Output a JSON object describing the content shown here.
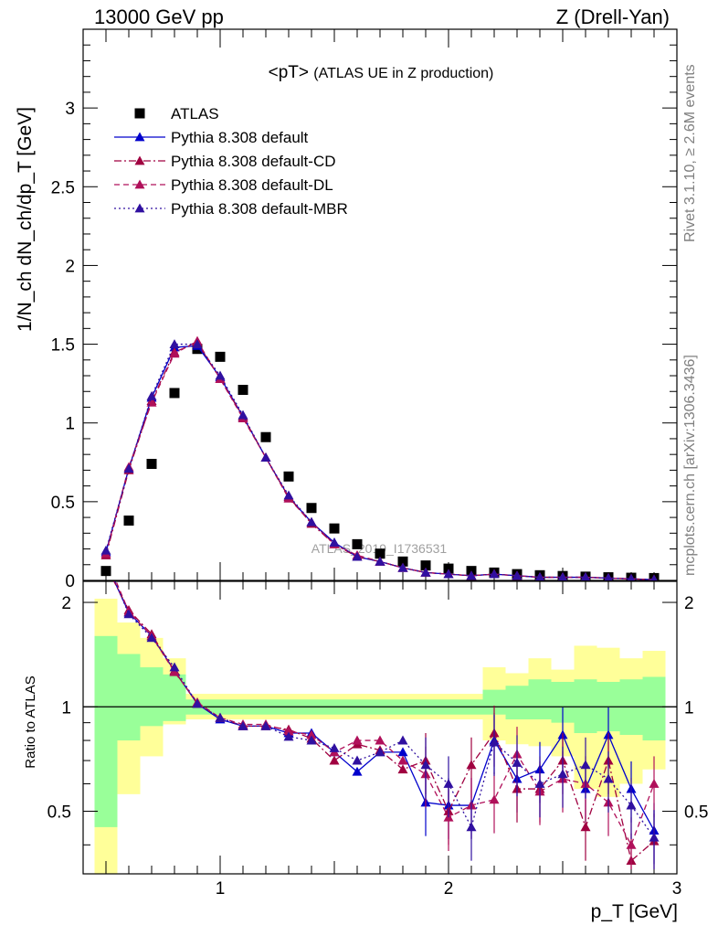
{
  "header": {
    "left": "13000 GeV pp",
    "right": "Z (Drell-Yan)"
  },
  "side_labels": {
    "rivet": "Rivet 3.1.10, ≥ 2.6M events",
    "mcplots": "mcplots.cern.ch [arXiv:1306.3436]"
  },
  "main_panel": {
    "title_main": "<pT>",
    "title_sub": "(ATLAS UE in Z production)",
    "watermark": "ATLAS_2019_I1736531",
    "ylabel": "1/N_ch dN_ch/dp_T [GeV]",
    "y_ticks": [
      "0",
      "0.5",
      "1",
      "1.5",
      "2",
      "2.5",
      "3"
    ]
  },
  "ratio_panel": {
    "ylabel": "Ratio to ATLAS",
    "y_ticks_left": [
      "0.5",
      "1",
      "2"
    ],
    "y_ticks_right": [
      "0.5",
      "1",
      "2"
    ]
  },
  "x_axis": {
    "label": "p_T [GeV]",
    "ticks": [
      "1",
      "2",
      "3"
    ]
  },
  "legend": [
    {
      "label": "ATLAS",
      "color": "#000000",
      "marker": "square",
      "style": "none"
    },
    {
      "label": "Pythia 8.308 default",
      "color": "#0000cc",
      "marker": "triangle",
      "style": "solid"
    },
    {
      "label": "Pythia 8.308 default-CD",
      "color": "#a00040",
      "marker": "triangle",
      "style": "dashdot"
    },
    {
      "label": "Pythia 8.308 default-DL",
      "color": "#b0105a",
      "marker": "triangle",
      "style": "dashed"
    },
    {
      "label": "Pythia 8.308 default-MBR",
      "color": "#3010a0",
      "marker": "triangle",
      "style": "dotted"
    }
  ],
  "chart_data": {
    "type": "scatter",
    "x_range": [
      0.4,
      3.0
    ],
    "main_ylim": [
      0,
      3.5
    ],
    "ratio_ylim": [
      0.33,
      2.3
    ],
    "ratio_yscale": "log",
    "x": [
      0.5,
      0.6,
      0.7,
      0.8,
      0.9,
      1.0,
      1.1,
      1.2,
      1.3,
      1.4,
      1.5,
      1.6,
      1.7,
      1.8,
      1.9,
      2.0,
      2.1,
      2.2,
      2.3,
      2.4,
      2.5,
      2.6,
      2.7,
      2.8,
      2.9
    ],
    "atlas": [
      0.06,
      0.38,
      0.74,
      1.19,
      1.47,
      1.42,
      1.21,
      0.91,
      0.66,
      0.46,
      0.33,
      0.23,
      0.17,
      0.12,
      0.095,
      0.075,
      0.06,
      0.05,
      0.04,
      0.033,
      0.028,
      0.024,
      0.02,
      0.017,
      0.015
    ],
    "series": [
      {
        "name": "Pythia 8.308 default",
        "values": [
          0.18,
          0.71,
          1.16,
          1.48,
          1.49,
          1.29,
          1.04,
          0.78,
          0.53,
          0.37,
          0.24,
          0.15,
          0.12,
          0.08,
          0.05,
          0.04,
          0.03,
          0.04,
          0.03,
          0.02,
          0.02,
          0.02,
          0.015,
          0.01,
          0.005
        ],
        "ratio": [
          2.6,
          1.87,
          1.6,
          1.27,
          1.02,
          0.92,
          0.88,
          0.88,
          0.84,
          0.84,
          0.74,
          0.65,
          0.74,
          0.74,
          0.53,
          0.52,
          0.52,
          0.8,
          0.62,
          0.66,
          0.83,
          0.58,
          0.83,
          0.58,
          0.44
        ]
      },
      {
        "name": "Pythia 8.308 default-CD",
        "values": [
          0.16,
          0.7,
          1.14,
          1.45,
          1.51,
          1.28,
          1.04,
          0.78,
          0.53,
          0.36,
          0.23,
          0.15,
          0.12,
          0.08,
          0.05,
          0.04,
          0.03,
          0.04,
          0.03,
          0.02,
          0.02,
          0.02,
          0.015,
          0.01,
          0.005
        ],
        "ratio": [
          2.55,
          1.9,
          1.62,
          1.27,
          1.02,
          0.93,
          0.88,
          0.88,
          0.86,
          0.81,
          0.7,
          0.78,
          0.75,
          0.66,
          0.7,
          0.5,
          0.68,
          0.84,
          0.58,
          0.58,
          0.7,
          0.45,
          0.7,
          0.36,
          0.41
        ]
      },
      {
        "name": "Pythia 8.308 default-DL",
        "values": [
          0.17,
          0.72,
          1.13,
          1.44,
          1.52,
          1.28,
          1.03,
          0.78,
          0.52,
          0.37,
          0.23,
          0.16,
          0.12,
          0.08,
          0.05,
          0.04,
          0.03,
          0.04,
          0.03,
          0.02,
          0.02,
          0.02,
          0.015,
          0.01,
          0.005
        ],
        "ratio": [
          2.7,
          1.88,
          1.6,
          1.26,
          1.03,
          0.93,
          0.89,
          0.89,
          0.85,
          0.83,
          0.74,
          0.8,
          0.8,
          0.7,
          0.64,
          0.48,
          0.52,
          0.54,
          0.73,
          0.57,
          0.62,
          0.6,
          0.53,
          0.4,
          0.6
        ]
      },
      {
        "name": "Pythia 8.308 default-MBR",
        "values": [
          0.19,
          0.71,
          1.17,
          1.5,
          1.5,
          1.3,
          1.05,
          0.78,
          0.54,
          0.37,
          0.24,
          0.15,
          0.12,
          0.08,
          0.05,
          0.04,
          0.03,
          0.04,
          0.03,
          0.02,
          0.02,
          0.02,
          0.015,
          0.01,
          0.005
        ],
        "ratio": [
          2.65,
          1.85,
          1.58,
          1.3,
          1.02,
          0.93,
          0.88,
          0.88,
          0.82,
          0.8,
          0.76,
          0.7,
          0.74,
          0.8,
          0.68,
          0.6,
          0.45,
          0.79,
          0.69,
          0.6,
          0.64,
          0.68,
          0.62,
          0.52,
          0.42
        ]
      }
    ],
    "ratio_bands": {
      "green": [
        [
          0.45,
          1.6
        ],
        [
          0.8,
          1.42
        ],
        [
          0.88,
          1.3
        ],
        [
          0.91,
          1.24
        ],
        [
          0.95,
          1.05
        ],
        [
          0.95,
          1.05
        ],
        [
          0.95,
          1.05
        ],
        [
          0.95,
          1.05
        ],
        [
          0.95,
          1.05
        ],
        [
          0.95,
          1.05
        ],
        [
          0.95,
          1.05
        ],
        [
          0.95,
          1.05
        ],
        [
          0.95,
          1.05
        ],
        [
          0.95,
          1.05
        ],
        [
          0.95,
          1.05
        ],
        [
          0.95,
          1.05
        ],
        [
          0.95,
          1.05
        ],
        [
          0.95,
          1.12
        ],
        [
          0.92,
          1.15
        ],
        [
          0.92,
          1.2
        ],
        [
          0.9,
          1.18
        ],
        [
          0.84,
          1.2
        ],
        [
          0.85,
          1.18
        ],
        [
          0.83,
          1.2
        ],
        [
          0.8,
          1.22
        ]
      ],
      "yellow": [
        [
          0.3,
          2.05
        ],
        [
          0.56,
          1.75
        ],
        [
          0.72,
          1.58
        ],
        [
          0.89,
          1.38
        ],
        [
          0.92,
          1.09
        ],
        [
          0.92,
          1.09
        ],
        [
          0.92,
          1.09
        ],
        [
          0.92,
          1.09
        ],
        [
          0.92,
          1.09
        ],
        [
          0.92,
          1.09
        ],
        [
          0.92,
          1.09
        ],
        [
          0.92,
          1.09
        ],
        [
          0.92,
          1.09
        ],
        [
          0.92,
          1.09
        ],
        [
          0.92,
          1.09
        ],
        [
          0.92,
          1.09
        ],
        [
          0.92,
          1.09
        ],
        [
          0.8,
          1.3
        ],
        [
          0.78,
          1.25
        ],
        [
          0.77,
          1.38
        ],
        [
          0.72,
          1.28
        ],
        [
          0.58,
          1.5
        ],
        [
          0.55,
          1.48
        ],
        [
          0.6,
          1.38
        ],
        [
          0.66,
          1.45
        ]
      ]
    }
  }
}
